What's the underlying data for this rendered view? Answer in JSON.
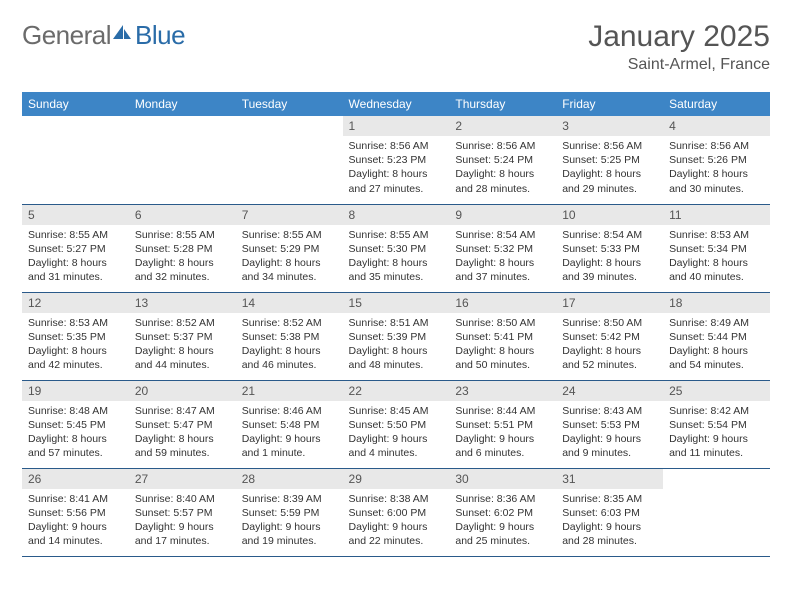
{
  "logo": {
    "part1": "General",
    "part2": "Blue"
  },
  "title": "January 2025",
  "location": "Saint-Armel, France",
  "header_bg": "#3d85c6",
  "header_text": "#ffffff",
  "daynum_bg": "#e8e8e8",
  "row_border": "#2a5a8a",
  "columns": [
    "Sunday",
    "Monday",
    "Tuesday",
    "Wednesday",
    "Thursday",
    "Friday",
    "Saturday"
  ],
  "weeks": [
    [
      null,
      null,
      null,
      {
        "n": "1",
        "sr": "8:56 AM",
        "ss": "5:23 PM",
        "dl": "8 hours and 27 minutes."
      },
      {
        "n": "2",
        "sr": "8:56 AM",
        "ss": "5:24 PM",
        "dl": "8 hours and 28 minutes."
      },
      {
        "n": "3",
        "sr": "8:56 AM",
        "ss": "5:25 PM",
        "dl": "8 hours and 29 minutes."
      },
      {
        "n": "4",
        "sr": "8:56 AM",
        "ss": "5:26 PM",
        "dl": "8 hours and 30 minutes."
      }
    ],
    [
      {
        "n": "5",
        "sr": "8:55 AM",
        "ss": "5:27 PM",
        "dl": "8 hours and 31 minutes."
      },
      {
        "n": "6",
        "sr": "8:55 AM",
        "ss": "5:28 PM",
        "dl": "8 hours and 32 minutes."
      },
      {
        "n": "7",
        "sr": "8:55 AM",
        "ss": "5:29 PM",
        "dl": "8 hours and 34 minutes."
      },
      {
        "n": "8",
        "sr": "8:55 AM",
        "ss": "5:30 PM",
        "dl": "8 hours and 35 minutes."
      },
      {
        "n": "9",
        "sr": "8:54 AM",
        "ss": "5:32 PM",
        "dl": "8 hours and 37 minutes."
      },
      {
        "n": "10",
        "sr": "8:54 AM",
        "ss": "5:33 PM",
        "dl": "8 hours and 39 minutes."
      },
      {
        "n": "11",
        "sr": "8:53 AM",
        "ss": "5:34 PM",
        "dl": "8 hours and 40 minutes."
      }
    ],
    [
      {
        "n": "12",
        "sr": "8:53 AM",
        "ss": "5:35 PM",
        "dl": "8 hours and 42 minutes."
      },
      {
        "n": "13",
        "sr": "8:52 AM",
        "ss": "5:37 PM",
        "dl": "8 hours and 44 minutes."
      },
      {
        "n": "14",
        "sr": "8:52 AM",
        "ss": "5:38 PM",
        "dl": "8 hours and 46 minutes."
      },
      {
        "n": "15",
        "sr": "8:51 AM",
        "ss": "5:39 PM",
        "dl": "8 hours and 48 minutes."
      },
      {
        "n": "16",
        "sr": "8:50 AM",
        "ss": "5:41 PM",
        "dl": "8 hours and 50 minutes."
      },
      {
        "n": "17",
        "sr": "8:50 AM",
        "ss": "5:42 PM",
        "dl": "8 hours and 52 minutes."
      },
      {
        "n": "18",
        "sr": "8:49 AM",
        "ss": "5:44 PM",
        "dl": "8 hours and 54 minutes."
      }
    ],
    [
      {
        "n": "19",
        "sr": "8:48 AM",
        "ss": "5:45 PM",
        "dl": "8 hours and 57 minutes."
      },
      {
        "n": "20",
        "sr": "8:47 AM",
        "ss": "5:47 PM",
        "dl": "8 hours and 59 minutes."
      },
      {
        "n": "21",
        "sr": "8:46 AM",
        "ss": "5:48 PM",
        "dl": "9 hours and 1 minute."
      },
      {
        "n": "22",
        "sr": "8:45 AM",
        "ss": "5:50 PM",
        "dl": "9 hours and 4 minutes."
      },
      {
        "n": "23",
        "sr": "8:44 AM",
        "ss": "5:51 PM",
        "dl": "9 hours and 6 minutes."
      },
      {
        "n": "24",
        "sr": "8:43 AM",
        "ss": "5:53 PM",
        "dl": "9 hours and 9 minutes."
      },
      {
        "n": "25",
        "sr": "8:42 AM",
        "ss": "5:54 PM",
        "dl": "9 hours and 11 minutes."
      }
    ],
    [
      {
        "n": "26",
        "sr": "8:41 AM",
        "ss": "5:56 PM",
        "dl": "9 hours and 14 minutes."
      },
      {
        "n": "27",
        "sr": "8:40 AM",
        "ss": "5:57 PM",
        "dl": "9 hours and 17 minutes."
      },
      {
        "n": "28",
        "sr": "8:39 AM",
        "ss": "5:59 PM",
        "dl": "9 hours and 19 minutes."
      },
      {
        "n": "29",
        "sr": "8:38 AM",
        "ss": "6:00 PM",
        "dl": "9 hours and 22 minutes."
      },
      {
        "n": "30",
        "sr": "8:36 AM",
        "ss": "6:02 PM",
        "dl": "9 hours and 25 minutes."
      },
      {
        "n": "31",
        "sr": "8:35 AM",
        "ss": "6:03 PM",
        "dl": "9 hours and 28 minutes."
      },
      null
    ]
  ],
  "labels": {
    "sunrise": "Sunrise:",
    "sunset": "Sunset:",
    "daylight": "Daylight:"
  }
}
